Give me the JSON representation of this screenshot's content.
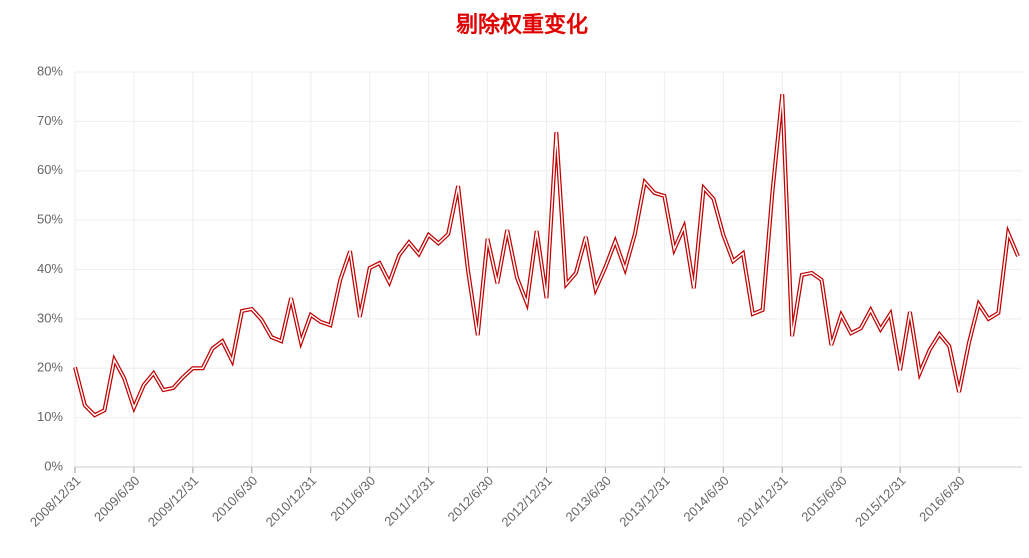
{
  "chart_data": {
    "type": "line",
    "title": "剔除权重变化",
    "categories": [
      "2008/12/31",
      null,
      null,
      null,
      null,
      null,
      "2009/6/30",
      null,
      null,
      null,
      null,
      null,
      "2009/12/31",
      null,
      null,
      null,
      null,
      null,
      "2010/6/30",
      null,
      null,
      null,
      null,
      null,
      "2010/12/31",
      null,
      null,
      null,
      null,
      null,
      "2011/6/30",
      null,
      null,
      null,
      null,
      null,
      "2011/12/31",
      null,
      null,
      null,
      null,
      null,
      "2012/6/30",
      null,
      null,
      null,
      null,
      null,
      "2012/12/31",
      null,
      null,
      null,
      null,
      null,
      "2013/6/30",
      null,
      null,
      null,
      null,
      null,
      "2013/12/31",
      null,
      null,
      null,
      null,
      null,
      "2014/6/30",
      null,
      null,
      null,
      null,
      null,
      "2014/12/31",
      null,
      null,
      null,
      null,
      null,
      "2015/6/30",
      null,
      null,
      null,
      null,
      null,
      "2015/12/31",
      null,
      null,
      null,
      null,
      null,
      "2016/6/30",
      null,
      null,
      null,
      null,
      null,
      null
    ],
    "values": [
      20.2,
      12.5,
      10.5,
      11.5,
      21.7,
      18,
      12,
      16.6,
      19,
      15.6,
      16,
      18.2,
      20,
      20,
      24,
      25.5,
      21.5,
      31.6,
      32,
      29.8,
      26.3,
      25.5,
      34.2,
      25.3,
      30.8,
      29.4,
      28.7,
      37.9,
      43.7,
      30.4,
      40.3,
      41.3,
      37.4,
      42.9,
      45.5,
      43.1,
      47,
      45.3,
      47.2,
      56.9,
      39.9,
      26.7,
      46.2,
      37.2,
      48,
      38.3,
      33.2,
      47.8,
      34.2,
      67.8,
      37,
      39.3,
      46.6,
      36,
      40.5,
      45.7,
      40.1,
      47.2,
      57.7,
      55.5,
      54.9,
      44.1,
      48.6,
      36.2,
      56.5,
      54.3,
      47,
      41.7,
      43.3,
      31,
      31.8,
      55.7,
      75.5,
      26.5,
      38.9,
      39.3,
      37.9,
      24.7,
      30.8,
      27.1,
      28.1,
      31.8,
      27.9,
      31,
      19.6,
      31.4,
      19,
      23.7,
      26.9,
      24.5,
      15.2,
      25.1,
      33,
      30,
      31.2,
      47.4,
      42.7
    ],
    "color": "#c00000",
    "ylim": [
      0,
      80
    ],
    "yticks": [
      {
        "value": 0,
        "label": "0%"
      },
      {
        "value": 10,
        "label": "10%"
      },
      {
        "value": 20,
        "label": "20%"
      },
      {
        "value": 30,
        "label": "30%"
      },
      {
        "value": 40,
        "label": "40%"
      },
      {
        "value": 50,
        "label": "50%"
      },
      {
        "value": 60,
        "label": "60%"
      },
      {
        "value": 70,
        "label": "70%"
      },
      {
        "value": 80,
        "label": "80%"
      }
    ],
    "grid": true
  }
}
